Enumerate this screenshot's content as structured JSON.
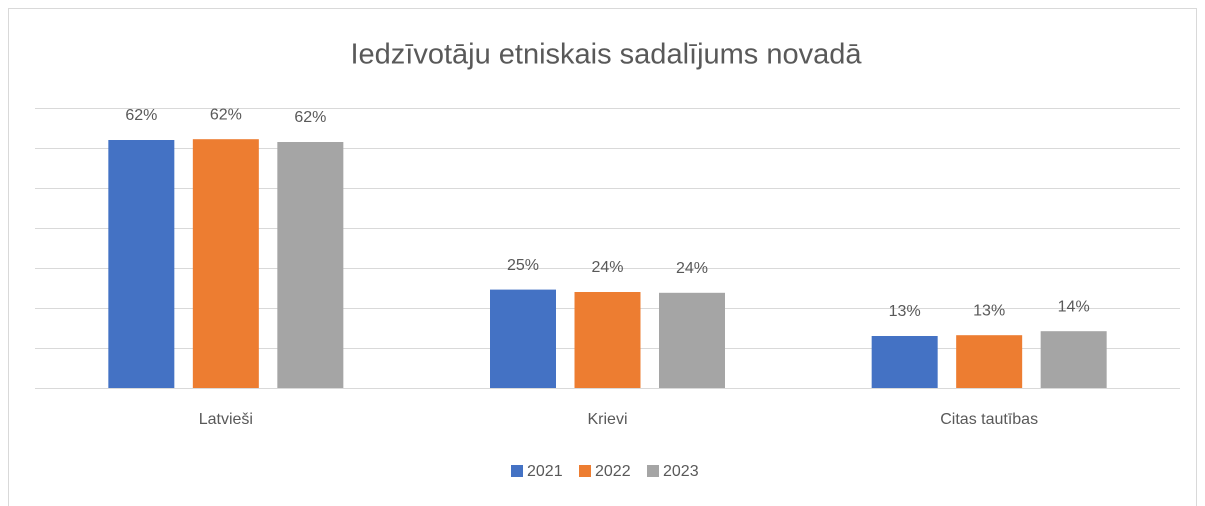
{
  "chart_data": {
    "type": "bar",
    "title": "Iedzīvotāju etniskais sadalījums novadā",
    "categories": [
      "Latvieši",
      "Krievi",
      "Citas tautības"
    ],
    "series": [
      {
        "name": "2021",
        "color": "#4472c4",
        "values": [
          62,
          24.6,
          13
        ],
        "value_labels": [
          "62%",
          "25%",
          "13%"
        ]
      },
      {
        "name": "2022",
        "color": "#ed7d31",
        "values": [
          62.2,
          24,
          13.2
        ],
        "value_labels": [
          "62%",
          "24%",
          "13%"
        ]
      },
      {
        "name": "2023",
        "color": "#a5a5a5",
        "values": [
          61.5,
          23.8,
          14.2
        ],
        "value_labels": [
          "62%",
          "24%",
          "14%"
        ]
      }
    ],
    "ylim": [
      0,
      70
    ],
    "yticks": [
      0,
      10,
      20,
      30,
      40,
      50,
      60,
      70
    ],
    "grid": true,
    "legend": "bottom"
  }
}
